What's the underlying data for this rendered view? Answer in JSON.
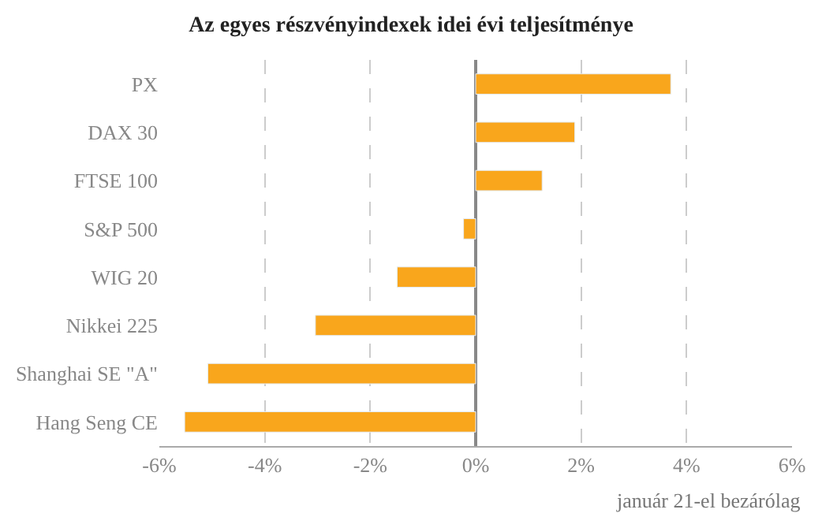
{
  "chart_data": {
    "type": "bar",
    "orientation": "horizontal",
    "title": "Az egyes részvényindexek idei évi teljesítménye",
    "categories": [
      "PX",
      "DAX 30",
      "FTSE 100",
      "S&P 500",
      "WIG 20",
      "Nikkei 225",
      "Shanghai SE \"A\"",
      "Hang Seng CE"
    ],
    "values": [
      3.7,
      1.88,
      1.26,
      -0.23,
      -1.49,
      -3.04,
      -5.08,
      -5.52
    ],
    "color": "#f9a61c",
    "xlim": [
      -6,
      6
    ],
    "xticks": [
      {
        "value": -6,
        "label": "-6%"
      },
      {
        "value": -4,
        "label": "-4%"
      },
      {
        "value": -2,
        "label": "-2%"
      },
      {
        "value": 0,
        "label": "0%"
      },
      {
        "value": 2,
        "label": "2%"
      },
      {
        "value": 4,
        "label": "4%"
      },
      {
        "value": 6,
        "label": "6%"
      }
    ],
    "grid": "x",
    "legend": false,
    "annotations": [
      "január 21-el bezárólag"
    ]
  }
}
